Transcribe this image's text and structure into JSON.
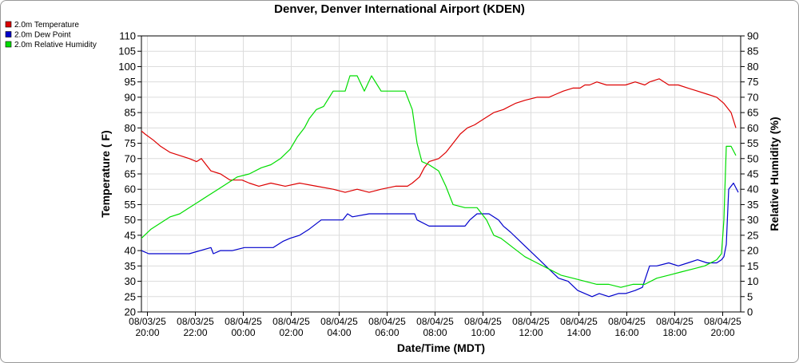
{
  "chart_data": {
    "type": "line",
    "title": "Denver, Denver International Airport (KDEN)",
    "xlabel": "Date/Time (MDT)",
    "ylabel": "Temperature ( F)",
    "y2label": "Relative Humidity (%)",
    "ylim": [
      20,
      110
    ],
    "y2lim": [
      0,
      90
    ],
    "yticks": [
      20,
      25,
      30,
      35,
      40,
      45,
      50,
      55,
      60,
      65,
      70,
      75,
      80,
      85,
      90,
      95,
      100,
      105,
      110
    ],
    "y2ticks": [
      0,
      5,
      10,
      15,
      20,
      25,
      30,
      35,
      40,
      45,
      50,
      55,
      60,
      65,
      70,
      75,
      80,
      85,
      90
    ],
    "xlim": [
      0,
      25
    ],
    "x_unit": "hours since 08/03/25 19:45",
    "xticks": [
      {
        "x": 0.25,
        "date": "08/03/25",
        "time": "20:00"
      },
      {
        "x": 2.25,
        "date": "08/03/25",
        "time": "22:00"
      },
      {
        "x": 4.25,
        "date": "08/04/25",
        "time": "00:00"
      },
      {
        "x": 6.25,
        "date": "08/04/25",
        "time": "02:00"
      },
      {
        "x": 8.25,
        "date": "08/04/25",
        "time": "04:00"
      },
      {
        "x": 10.25,
        "date": "08/04/25",
        "time": "06:00"
      },
      {
        "x": 12.25,
        "date": "08/04/25",
        "time": "08:00"
      },
      {
        "x": 14.25,
        "date": "08/04/25",
        "time": "10:00"
      },
      {
        "x": 16.25,
        "date": "08/04/25",
        "time": "12:00"
      },
      {
        "x": 18.25,
        "date": "08/04/25",
        "time": "14:00"
      },
      {
        "x": 20.25,
        "date": "08/04/25",
        "time": "16:00"
      },
      {
        "x": 22.25,
        "date": "08/04/25",
        "time": "18:00"
      },
      {
        "x": 24.25,
        "date": "08/04/25",
        "time": "20:00"
      }
    ],
    "legend_position": "top-left outside",
    "series": [
      {
        "name": "2.0m Temperature",
        "color": "#dd0000",
        "axis": "left",
        "x": [
          0,
          0.15,
          0.5,
          0.8,
          1.2,
          1.6,
          2.0,
          2.3,
          2.5,
          2.9,
          3.3,
          3.7,
          4.2,
          4.5,
          4.9,
          5.4,
          6.0,
          6.6,
          7.3,
          8.0,
          8.5,
          9.0,
          9.5,
          10.0,
          10.6,
          11.1,
          11.3,
          11.6,
          11.8,
          12.0,
          12.4,
          12.7,
          13.0,
          13.3,
          13.6,
          13.9,
          14.3,
          14.7,
          15.1,
          15.6,
          16.0,
          16.5,
          17.0,
          17.3,
          17.6,
          18.0,
          18.3,
          18.5,
          18.7,
          19.0,
          19.4,
          19.8,
          20.2,
          20.6,
          21.0,
          21.2,
          21.6,
          22.0,
          22.4,
          22.8,
          23.2,
          23.6,
          24.0,
          24.3,
          24.6,
          24.8
        ],
        "y": [
          79,
          78,
          76,
          74,
          72,
          71,
          70,
          69,
          70,
          66,
          65,
          63,
          63,
          62,
          61,
          62,
          61,
          62,
          61,
          60,
          59,
          60,
          59,
          60,
          61,
          61,
          62,
          64,
          67,
          69,
          70,
          72,
          75,
          78,
          80,
          81,
          83,
          85,
          86,
          88,
          89,
          90,
          90,
          91,
          92,
          93,
          93,
          94,
          94,
          95,
          94,
          94,
          94,
          95,
          94,
          95,
          96,
          94,
          94,
          93,
          92,
          91,
          90,
          88,
          85,
          80
        ]
      },
      {
        "name": "2.0m Dew Point",
        "color": "#0000cc",
        "axis": "left",
        "x": [
          0,
          0.3,
          1.0,
          2.0,
          2.9,
          3.0,
          3.3,
          3.8,
          4.3,
          5.0,
          5.5,
          5.9,
          6.2,
          6.6,
          7.0,
          7.5,
          8.0,
          8.4,
          8.6,
          8.8,
          9.5,
          10.5,
          11.0,
          11.4,
          11.5,
          12.0,
          12.5,
          13.0,
          13.5,
          13.7,
          14.0,
          14.5,
          14.9,
          15.1,
          15.4,
          15.8,
          16.2,
          16.6,
          17.0,
          17.4,
          17.8,
          18.2,
          18.5,
          18.8,
          19.1,
          19.5,
          19.9,
          20.2,
          20.6,
          20.9,
          21.2,
          21.5,
          22.0,
          22.4,
          22.8,
          23.2,
          23.6,
          24.0,
          24.2,
          24.3,
          24.4,
          24.5,
          24.7,
          24.9
        ],
        "y": [
          40,
          39,
          39,
          39,
          41,
          39,
          40,
          40,
          41,
          41,
          41,
          43,
          44,
          45,
          47,
          50,
          50,
          50,
          52,
          51,
          52,
          52,
          52,
          52,
          50,
          48,
          48,
          48,
          48,
          50,
          52,
          52,
          50,
          48,
          46,
          43,
          40,
          37,
          34,
          31,
          30,
          27,
          26,
          25,
          26,
          25,
          26,
          26,
          27,
          28,
          35,
          35,
          36,
          35,
          36,
          37,
          36,
          36,
          37,
          38,
          42,
          60,
          62,
          59
        ]
      },
      {
        "name": "2.0m Relative Humidity",
        "color": "#00dd00",
        "axis": "right",
        "x": [
          0,
          0.4,
          0.8,
          1.2,
          1.6,
          2.0,
          2.4,
          2.8,
          3.2,
          3.6,
          4.0,
          4.5,
          5.0,
          5.4,
          5.8,
          6.2,
          6.5,
          6.8,
          7.0,
          7.3,
          7.6,
          8.0,
          8.5,
          8.7,
          9.0,
          9.3,
          9.6,
          10.0,
          10.5,
          11.0,
          11.3,
          11.5,
          11.7,
          12.0,
          12.4,
          12.7,
          13.0,
          13.5,
          14.0,
          14.4,
          14.7,
          15.0,
          15.5,
          16.0,
          16.5,
          17.0,
          17.5,
          18.0,
          18.5,
          19.0,
          19.5,
          20.0,
          20.5,
          21.0,
          21.5,
          22.0,
          22.5,
          23.0,
          23.5,
          24.0,
          24.2,
          24.3,
          24.4,
          24.6,
          24.8
        ],
        "y": [
          24,
          27,
          29,
          31,
          32,
          34,
          36,
          38,
          40,
          42,
          44,
          45,
          47,
          48,
          50,
          53,
          57,
          60,
          63,
          66,
          67,
          72,
          72,
          77,
          77,
          72,
          77,
          72,
          72,
          72,
          66,
          55,
          49,
          48,
          46,
          41,
          35,
          34,
          34,
          30,
          25,
          24,
          21,
          18,
          16,
          14,
          12,
          11,
          10,
          9,
          9,
          8,
          9,
          9,
          11,
          12,
          13,
          14,
          15,
          17,
          19,
          30,
          54,
          54,
          51
        ]
      }
    ]
  }
}
